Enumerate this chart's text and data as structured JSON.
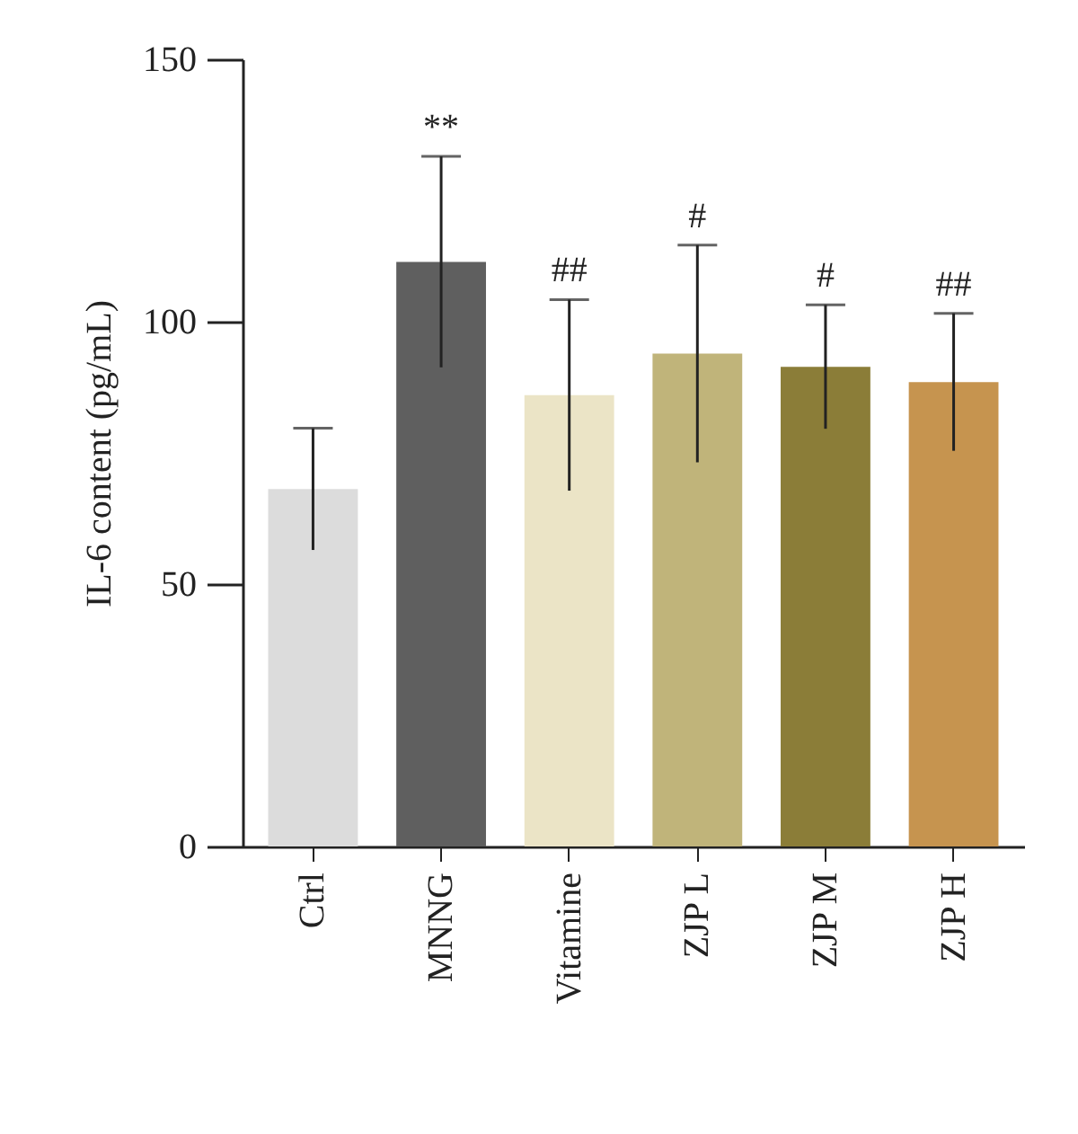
{
  "chart_data": {
    "type": "bar",
    "ylabel": "IL-6 content (pg/mL)",
    "categories": [
      "Ctrl",
      "MNNG",
      "Vitamine",
      "ZJP L",
      "ZJP M",
      "ZJP H"
    ],
    "values": [
      68.1,
      111.4,
      86.0,
      93.9,
      91.4,
      88.5
    ],
    "errors": [
      11.6,
      20.1,
      18.2,
      20.7,
      11.8,
      13.1
    ],
    "colors": [
      "#dcdcdc",
      "#5f5f5f",
      "#ebe4c6",
      "#c0b47a",
      "#8b7d38",
      "#c6944f"
    ],
    "ylim": [
      0,
      150
    ],
    "yticks": [
      0,
      50,
      100,
      150
    ],
    "grid": false,
    "legend": false,
    "annotations": [
      {
        "text": "**",
        "x": "MNNG",
        "y": 131.5
      },
      {
        "text": "##",
        "x": "Vitamine",
        "y": 104.2
      },
      {
        "text": "#",
        "x": "ZJP L",
        "y": 114.6
      },
      {
        "text": "#",
        "x": "ZJP M",
        "y": 103.2
      },
      {
        "text": "##",
        "x": "ZJP H",
        "y": 101.6
      }
    ]
  }
}
